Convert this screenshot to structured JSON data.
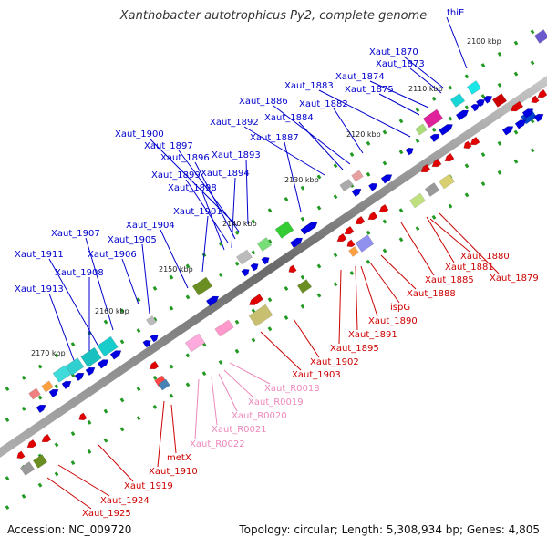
{
  "title": "Xanthobacter autotrophicus Py2, complete genome",
  "footer": {
    "accession": "Accession: NC_009720",
    "summary": "Topology: circular; Length: 5,308,934 bp; Genes: 4,805"
  },
  "colors": {
    "backbone": "#8c8c8c",
    "forward_gene": "#0000e0",
    "reverse_gene": "#e00000",
    "forward_label": "#0000cc",
    "reverse_label": "#cc0000",
    "rna_label": "#ee88bb",
    "tick": "#229922"
  },
  "scale_labels": [
    "2100 kbp",
    "2110 kbp",
    "2120 kbp",
    "2130 kbp",
    "2140 kbp",
    "2150 kbp",
    "2160 kbp",
    "2170 kbp"
  ],
  "forward_labels": [
    "thiE",
    "Xaut_1870",
    "Xaut_1873",
    "Xaut_1874",
    "Xaut_1875",
    "Xaut_1883",
    "Xaut_1882",
    "Xaut_1886",
    "Xaut_1884",
    "Xaut_1892",
    "Xaut_1887",
    "Xaut_1900",
    "Xaut_1897",
    "Xaut_1896",
    "Xaut_1893",
    "Xaut_1899",
    "Xaut_1894",
    "Xaut_1898",
    "Xaut_1901",
    "Xaut_1904",
    "Xaut_1907",
    "Xaut_1905",
    "Xaut_1911",
    "Xaut_1906",
    "Xaut_1908",
    "Xaut_1913"
  ],
  "reverse_labels": [
    "Xaut_1880",
    "Xaut_1881",
    "Xaut_1879",
    "Xaut_1885",
    "Xaut_1888",
    "ispG",
    "Xaut_1890",
    "Xaut_1891",
    "Xaut_1895",
    "Xaut_1902",
    "Xaut_1903",
    "metX",
    "Xaut_1910",
    "Xaut_1919",
    "Xaut_1924",
    "Xaut_1925"
  ],
  "rna_labels": [
    "Xaut_R0018",
    "Xaut_R0019",
    "Xaut_R0020",
    "Xaut_R0021",
    "Xaut_R0022"
  ]
}
